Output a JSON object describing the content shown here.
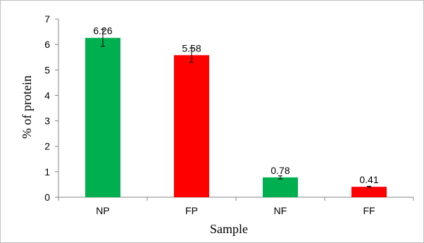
{
  "chart_data": {
    "type": "bar",
    "xlabel": "Sample",
    "ylabel": "% of protein",
    "categories": [
      "NP",
      "FP",
      "NF",
      "FF"
    ],
    "values": [
      6.26,
      5.58,
      0.78,
      0.41
    ],
    "data_labels": [
      "6.26",
      "5.58",
      "0.78",
      "0.41"
    ],
    "errors": [
      0.33,
      0.28,
      0.06,
      0.02
    ],
    "colors": [
      "#00b050",
      "#ff0000",
      "#00b050",
      "#ff0000"
    ],
    "ylim": [
      0,
      7
    ],
    "yticks": [
      "0",
      "1",
      "2",
      "3",
      "4",
      "5",
      "6",
      "7"
    ],
    "grid": false,
    "legend": "none"
  }
}
